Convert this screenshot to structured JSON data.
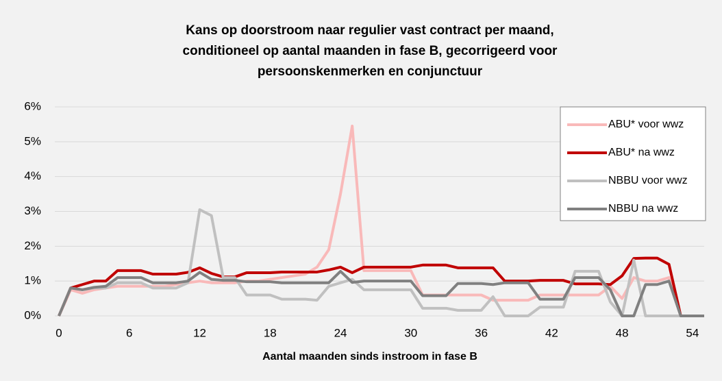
{
  "chart_data": {
    "type": "line",
    "title": [
      "Kans op doorstroom naar regulier vast contract per maand,",
      "conditioneel op aantal maanden in fase B, gecorrigeerd voor",
      "persoonskenmerken en conjunctuur"
    ],
    "x_label": "Aantal maanden sinds instroom in fase B",
    "x": [
      0,
      1,
      2,
      3,
      4,
      5,
      6,
      7,
      8,
      9,
      10,
      11,
      12,
      13,
      14,
      15,
      16,
      17,
      18,
      19,
      20,
      21,
      22,
      23,
      24,
      25,
      26,
      27,
      28,
      29,
      30,
      31,
      32,
      33,
      34,
      35,
      36,
      37,
      38,
      39,
      40,
      41,
      42,
      43,
      44,
      45,
      46,
      47,
      48,
      49,
      50,
      51,
      52,
      53,
      54,
      55
    ],
    "xlim": [
      0,
      55
    ],
    "xticks": [
      0,
      6,
      12,
      18,
      24,
      30,
      36,
      42,
      48,
      54
    ],
    "ylim": [
      0,
      6
    ],
    "yticks": [
      {
        "value": 0,
        "label": "0%"
      },
      {
        "value": 1,
        "label": "1%"
      },
      {
        "value": 2,
        "label": "2%"
      },
      {
        "value": 3,
        "label": "3%"
      },
      {
        "value": 4,
        "label": "4%"
      },
      {
        "value": 5,
        "label": "5%"
      },
      {
        "value": 6,
        "label": "6%"
      }
    ],
    "grid": true,
    "legend": "upper right",
    "series": [
      {
        "name": "ABU* voor wwz",
        "color": "#f9b9b9",
        "values": [
          0,
          0.75,
          0.65,
          0.75,
          0.8,
          0.85,
          0.85,
          0.85,
          0.85,
          0.85,
          0.9,
          0.95,
          1.0,
          0.95,
          0.95,
          0.95,
          1.0,
          1.0,
          1.05,
          1.1,
          1.15,
          1.2,
          1.4,
          1.9,
          3.5,
          5.45,
          1.3,
          1.3,
          1.3,
          1.3,
          1.3,
          0.6,
          0.6,
          0.6,
          0.6,
          0.6,
          0.6,
          0.45,
          0.45,
          0.45,
          0.45,
          0.6,
          0.6,
          0.6,
          0.6,
          0.6,
          0.6,
          0.85,
          0.5,
          1.1,
          1.0,
          1.0,
          1.1,
          0,
          0,
          0
        ]
      },
      {
        "name": "ABU* na wwz",
        "color": "#c00000",
        "values": [
          0,
          0.8,
          0.9,
          1.0,
          1.0,
          1.3,
          1.3,
          1.3,
          1.2,
          1.2,
          1.2,
          1.25,
          1.38,
          1.22,
          1.12,
          1.12,
          1.24,
          1.24,
          1.24,
          1.26,
          1.26,
          1.26,
          1.26,
          1.32,
          1.4,
          1.24,
          1.4,
          1.4,
          1.4,
          1.4,
          1.4,
          1.46,
          1.46,
          1.46,
          1.38,
          1.38,
          1.38,
          1.38,
          1.0,
          1.0,
          1.0,
          1.02,
          1.02,
          1.02,
          0.92,
          0.92,
          0.92,
          0.9,
          1.15,
          1.65,
          1.66,
          1.66,
          1.48,
          0,
          0,
          0
        ]
      },
      {
        "name": "NBBU voor wwz",
        "color": "#c0c0c0",
        "values": [
          0,
          0.8,
          0.75,
          0.8,
          0.8,
          0.95,
          0.95,
          0.95,
          0.8,
          0.8,
          0.8,
          0.95,
          3.05,
          2.88,
          1.1,
          1.1,
          0.6,
          0.6,
          0.6,
          0.48,
          0.48,
          0.48,
          0.45,
          0.85,
          0.95,
          1.05,
          0.75,
          0.75,
          0.75,
          0.75,
          0.75,
          0.22,
          0.22,
          0.22,
          0.16,
          0.16,
          0.16,
          0.55,
          0,
          0,
          0,
          0.25,
          0.25,
          0.25,
          1.28,
          1.28,
          1.28,
          0.4,
          0,
          1.6,
          0,
          0,
          0,
          0,
          0,
          0
        ]
      },
      {
        "name": "NBBU na wwz",
        "color": "#808080",
        "values": [
          0,
          0.8,
          0.75,
          0.82,
          0.85,
          1.1,
          1.1,
          1.1,
          0.95,
          0.95,
          0.95,
          1.0,
          1.25,
          1.05,
          1.02,
          1.02,
          0.98,
          0.98,
          0.98,
          0.95,
          0.95,
          0.95,
          0.95,
          0.95,
          1.28,
          0.96,
          1.0,
          1.0,
          1.0,
          1.0,
          1.0,
          0.58,
          0.58,
          0.58,
          0.93,
          0.93,
          0.93,
          0.9,
          0.95,
          0.95,
          0.95,
          0.48,
          0.48,
          0.48,
          1.1,
          1.1,
          1.1,
          0.75,
          0,
          0,
          0.9,
          0.9,
          1.0,
          0,
          0,
          0
        ]
      }
    ]
  }
}
